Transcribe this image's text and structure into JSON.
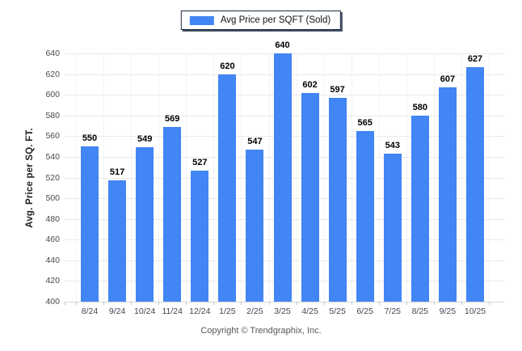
{
  "legend": {
    "label": "Avg Price per SQFT (Sold)",
    "swatch_color": "#4285f4"
  },
  "chart_data": {
    "type": "bar",
    "title": "",
    "series_name": "Avg Price per SQFT (Sold)",
    "categories": [
      "8/24",
      "9/24",
      "10/24",
      "11/24",
      "12/24",
      "1/25",
      "2/25",
      "3/25",
      "4/25",
      "5/25",
      "6/25",
      "7/25",
      "8/25",
      "9/25",
      "10/25"
    ],
    "values": [
      550,
      517,
      549,
      569,
      527,
      620,
      547,
      640,
      602,
      597,
      565,
      543,
      580,
      607,
      627
    ],
    "value_labels": true,
    "xlabel": "",
    "ylabel": "Avg. Price per SQ. FT.",
    "ylim": [
      400,
      650
    ],
    "yticks": {
      "start": 400,
      "end": 640,
      "step": 20
    },
    "grid": true,
    "legend_position": "top-center",
    "colors": {
      "bar": "#4285f4",
      "grid_horizontal": "#e9e9e9",
      "grid_vertical": "#f3f3f3",
      "baseline": "#d6d6d6",
      "axis_tick": "#c4c4c4",
      "legend_border": "#1b2a41"
    }
  },
  "footer": {
    "copyright": "Copyright © Trendgraphix, Inc."
  }
}
